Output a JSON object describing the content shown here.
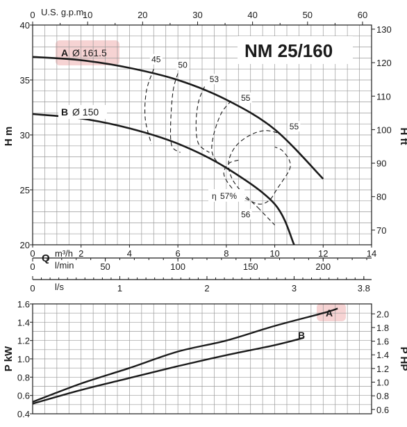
{
  "chart_data": [
    {
      "type": "line",
      "panel": "head",
      "title": "NM 25/160",
      "ylabel_left": "H m",
      "ylabel_right": "H ft",
      "xlabel_top": "U.S. g.p.m.",
      "ylim": [
        20,
        40
      ],
      "xlim_m3h": [
        0,
        14
      ],
      "ticks_left": [
        "20",
        "25",
        "30",
        "35",
        "40"
      ],
      "ticks_right": [
        "70",
        "80",
        "90",
        "100",
        "110",
        "120",
        "130"
      ],
      "ticks_top": [
        "0",
        "10",
        "20",
        "30",
        "40",
        "50",
        "60"
      ],
      "grid": true,
      "series": [
        {
          "name": "A",
          "label_suffix": "Ø 161.5",
          "points": [
            [
              0,
              37.1
            ],
            [
              2,
              36.8
            ],
            [
              4,
              36.1
            ],
            [
              6,
              35.0
            ],
            [
              8,
              33.2
            ],
            [
              10,
              30.5
            ],
            [
              12,
              26.0
            ]
          ]
        },
        {
          "name": "B",
          "label_suffix": "Ø 150",
          "points": [
            [
              0,
              31.9
            ],
            [
              2,
              31.5
            ],
            [
              4,
              30.6
            ],
            [
              6,
              29.2
            ],
            [
              8,
              27.0
            ],
            [
              10,
              23.7
            ],
            [
              10.8,
              20.0
            ]
          ]
        }
      ],
      "efficiency": {
        "prefix": "η",
        "prefix_label": "57%",
        "contours": [
          {
            "label": "45",
            "points": [
              [
                5.0,
                36.0
              ],
              [
                4.7,
                34.0
              ],
              [
                4.65,
                31.5
              ],
              [
                4.9,
                29.2
              ]
            ],
            "label_at": [
              5.1,
              36.6
            ]
          },
          {
            "label": "50",
            "points": [
              [
                6.0,
                35.6
              ],
              [
                5.8,
                34.0
              ],
              [
                5.7,
                31.0
              ],
              [
                5.75,
                29.0
              ],
              [
                6.1,
                28.4
              ]
            ],
            "label_at": [
              6.2,
              36.1
            ]
          },
          {
            "label": "53",
            "points": [
              [
                7.1,
                34.4
              ],
              [
                6.85,
                33.0
              ],
              [
                6.75,
                31.0
              ],
              [
                6.85,
                29.2
              ],
              [
                7.3,
                28.4
              ]
            ],
            "label_at": [
              7.5,
              34.8
            ]
          },
          {
            "label": "55",
            "points": [
              [
                8.2,
                33.1
              ],
              [
                7.8,
                32.0
              ],
              [
                7.5,
                30.2
              ],
              [
                7.4,
                28.6
              ],
              [
                7.6,
                27.6
              ],
              [
                7.9,
                27.1
              ]
            ],
            "label_at": [
              8.8,
              33.1
            ]
          },
          {
            "label": "55",
            "points": [
              [
                10.1,
                30.2
              ],
              [
                9.6,
                30.4
              ],
              [
                9.0,
                30.0
              ],
              [
                8.4,
                29.0
              ],
              [
                8.1,
                27.6
              ],
              [
                8.2,
                26.2
              ],
              [
                8.6,
                24.9
              ],
              [
                9.3,
                23.4
              ]
            ],
            "label_at": [
              10.8,
              30.5
            ]
          },
          {
            "label": "56",
            "points": [
              [
                8.5,
                27.7
              ],
              [
                8.1,
                27.4
              ],
              [
                7.9,
                26.4
              ],
              [
                8.3,
                25.0
              ],
              [
                8.9,
                24.1
              ],
              [
                9.4,
                23.7
              ],
              [
                9.8,
                24.1
              ],
              [
                10.1,
                25.1
              ],
              [
                10.6,
                26.8
              ],
              [
                10.6,
                27.7
              ],
              [
                10.3,
                28.6
              ],
              [
                10.0,
                28.9
              ]
            ],
            "label_at": [
              8.8,
              22.5
            ]
          },
          {
            "label": "",
            "points": [
              [
                9.3,
                23.4
              ],
              [
                10.0,
                21.8
              ]
            ]
          }
        ]
      }
    },
    {
      "type": "line",
      "panel": "flow-scales",
      "scales": [
        {
          "unit": "m³/h",
          "prefix": "Q",
          "ticks": [
            "0",
            "2",
            "4",
            "6",
            "8",
            "10",
            "12",
            "14"
          ]
        },
        {
          "unit": "l/min",
          "ticks": [
            "0",
            "50",
            "100",
            "150",
            "200"
          ]
        },
        {
          "unit": "l/s",
          "ticks": [
            "0",
            "1",
            "2",
            "3",
            "3.8"
          ]
        }
      ]
    },
    {
      "type": "line",
      "panel": "power",
      "ylabel_left": "P kW",
      "ylabel_right": "P HP",
      "ylim": [
        0.4,
        1.6
      ],
      "ticks_left": [
        "0.4",
        "0.6",
        "0.8",
        "1.0",
        "1.2",
        "1.4",
        "1.6"
      ],
      "ticks_right": [
        "0.6",
        "0.8",
        "1.0",
        "1.2",
        "1.4",
        "1.6",
        "1.8",
        "2.0"
      ],
      "grid": true,
      "series": [
        {
          "name": "A",
          "points": [
            [
              0,
              0.53
            ],
            [
              2,
              0.73
            ],
            [
              4,
              0.9
            ],
            [
              6,
              1.08
            ],
            [
              8,
              1.2
            ],
            [
              10,
              1.36
            ],
            [
              12,
              1.5
            ],
            [
              12.6,
              1.55
            ]
          ]
        },
        {
          "name": "B",
          "points": [
            [
              0,
              0.51
            ],
            [
              2,
              0.66
            ],
            [
              4,
              0.79
            ],
            [
              6,
              0.92
            ],
            [
              8,
              1.04
            ],
            [
              10,
              1.15
            ],
            [
              11.2,
              1.23
            ]
          ]
        }
      ]
    }
  ]
}
